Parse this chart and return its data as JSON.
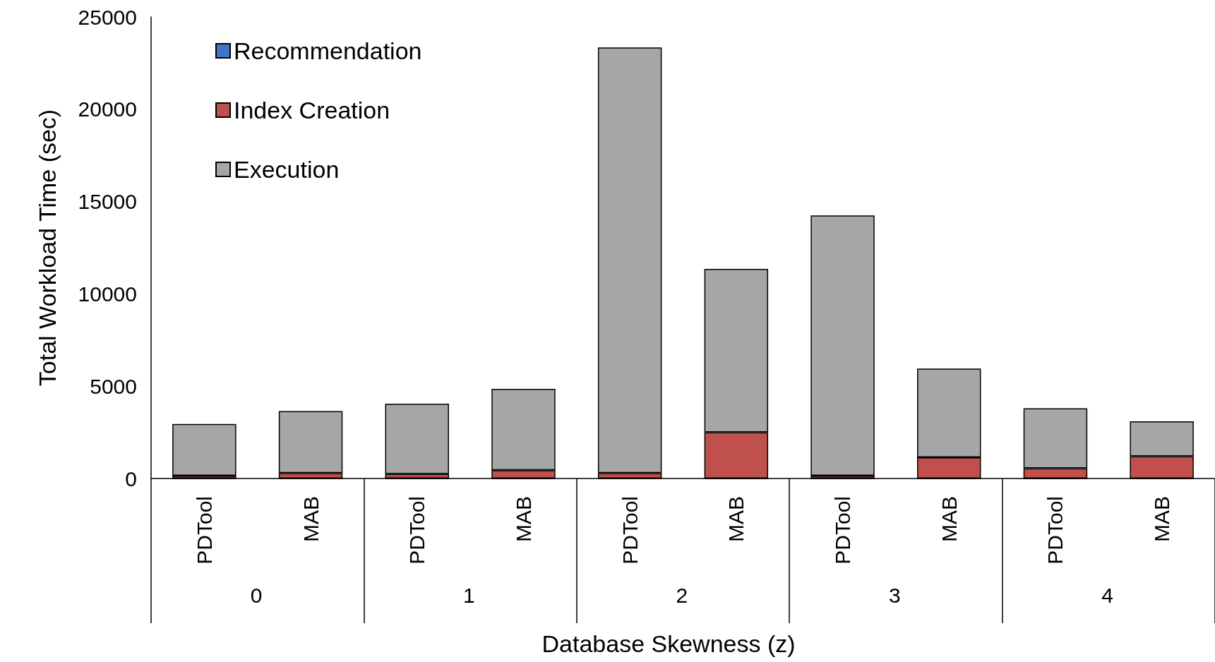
{
  "chart_data": {
    "type": "bar",
    "stacked": true,
    "xlabel": "Database Skewness (z)",
    "ylabel": "Total Workload Time (sec)",
    "categories": [
      "PDTool",
      "MAB",
      "PDTool",
      "MAB",
      "PDTool",
      "MAB",
      "PDTool",
      "MAB",
      "PDTool",
      "MAB"
    ],
    "annotations": [
      "0",
      "1",
      "2",
      "3",
      "4"
    ],
    "series": [
      {
        "name": "Recommendation",
        "color": "#4472c4",
        "values": [
          0,
          0,
          0,
          0,
          0,
          0,
          0,
          0,
          0,
          0
        ]
      },
      {
        "name": "Index Creation",
        "color": "#c0504d",
        "values": [
          150,
          300,
          250,
          450,
          300,
          2500,
          150,
          1150,
          550,
          1200
        ]
      },
      {
        "name": "Execution",
        "color": "#a6a6a6",
        "values": [
          2800,
          3350,
          3800,
          4400,
          23050,
          8850,
          14100,
          4800,
          3250,
          1900
        ]
      }
    ],
    "ylim": [
      0,
      25000
    ],
    "yticks": [
      0,
      5000,
      10000,
      15000,
      20000,
      25000
    ],
    "grid": false,
    "legend": "top left"
  }
}
